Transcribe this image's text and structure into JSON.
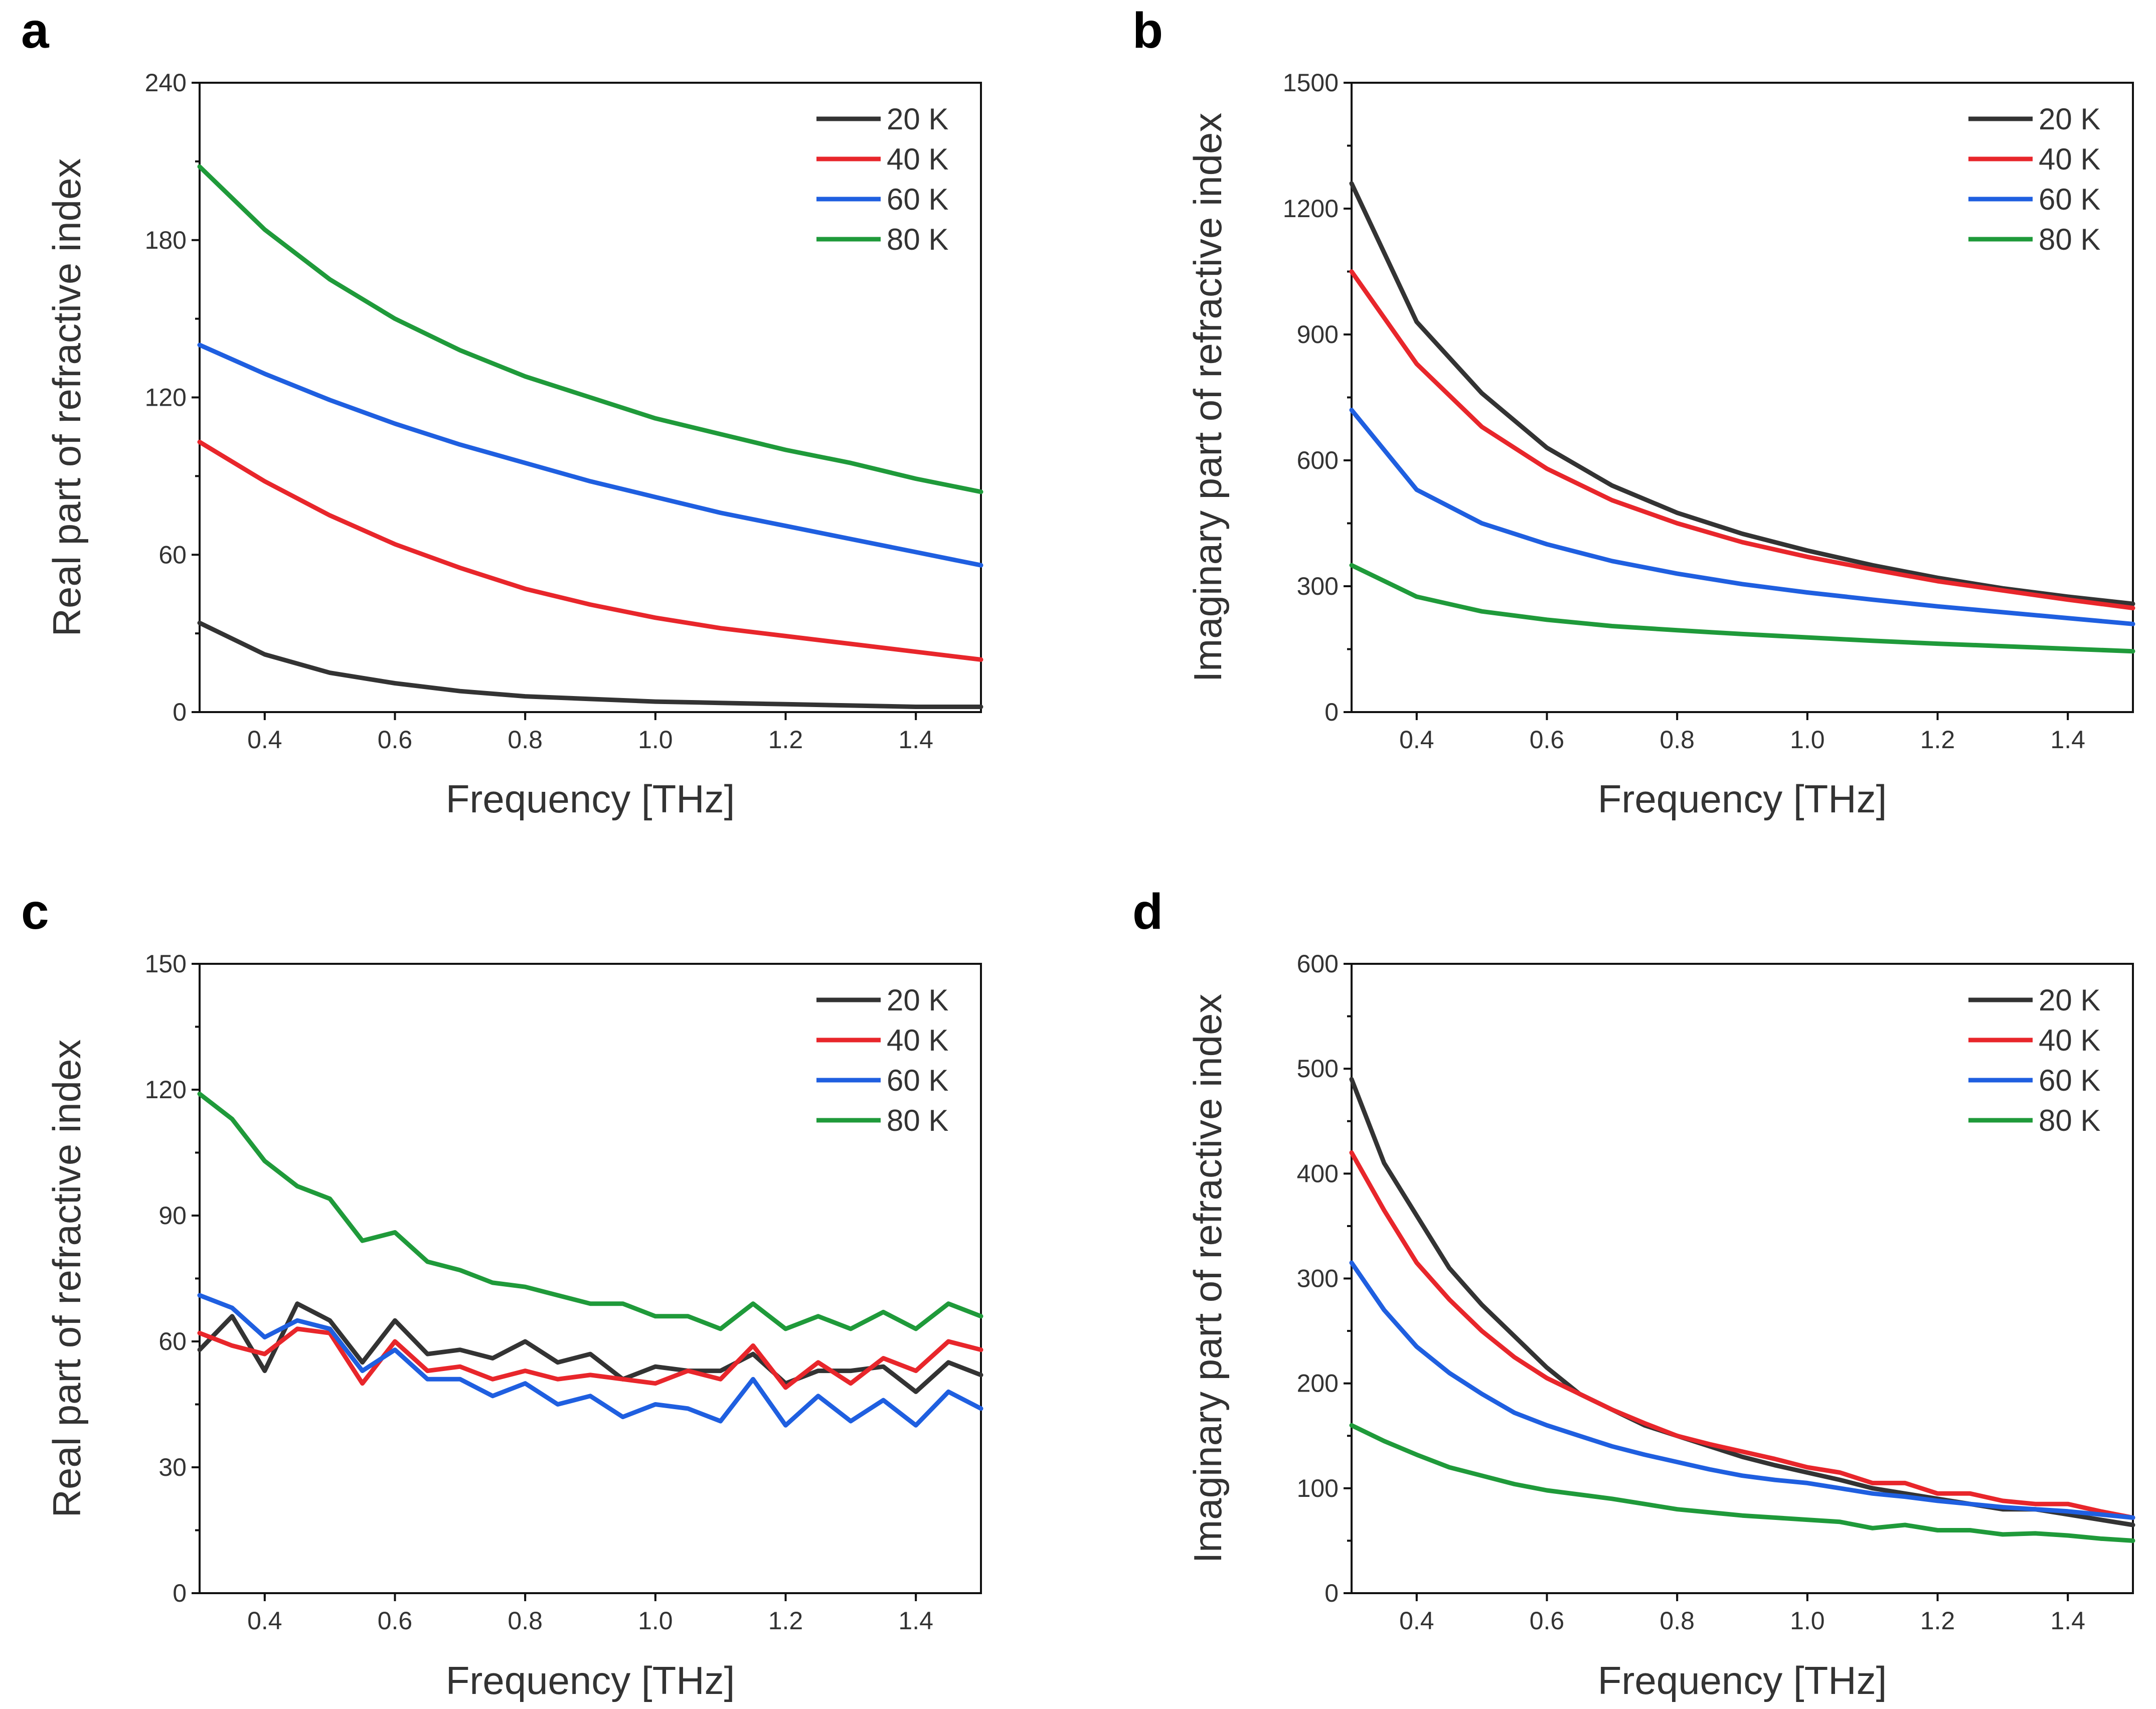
{
  "chart_data": [
    {
      "panel": "a",
      "type": "line",
      "xlabel": "Frequency [THz]",
      "ylabel": "Real part of refractive index",
      "xlim": [
        0.3,
        1.5
      ],
      "ylim": [
        0,
        240
      ],
      "xticks": [
        0.4,
        0.6,
        0.8,
        1.0,
        1.2,
        1.4
      ],
      "xtick_labels": [
        "0.4",
        "0.6",
        "0.8",
        "1.0",
        "1.2",
        "1.4"
      ],
      "yticks": [
        0,
        60,
        120,
        180,
        240
      ],
      "ytick_labels": [
        "0",
        "60",
        "120",
        "180",
        "240"
      ],
      "legend_position": "top-right",
      "x": [
        0.3,
        0.4,
        0.5,
        0.6,
        0.7,
        0.8,
        0.9,
        1.0,
        1.1,
        1.2,
        1.3,
        1.4,
        1.5
      ],
      "series": [
        {
          "name": "20 K",
          "color": "#333333",
          "values": [
            34,
            22,
            15,
            11,
            8,
            6,
            5,
            4,
            3.5,
            3,
            2.5,
            2,
            2
          ]
        },
        {
          "name": "40 K",
          "color": "#e8262b",
          "values": [
            103,
            88,
            75,
            64,
            55,
            47,
            41,
            36,
            32,
            29,
            26,
            23,
            20
          ]
        },
        {
          "name": "60 K",
          "color": "#1f5fe0",
          "values": [
            140,
            129,
            119,
            110,
            102,
            95,
            88,
            82,
            76,
            71,
            66,
            61,
            56
          ]
        },
        {
          "name": "80 K",
          "color": "#1f9a3a",
          "values": [
            208,
            184,
            165,
            150,
            138,
            128,
            120,
            112,
            106,
            100,
            95,
            89,
            84
          ]
        }
      ]
    },
    {
      "panel": "b",
      "type": "line",
      "xlabel": "Frequency [THz]",
      "ylabel": "Imaginary part of refractive index",
      "xlim": [
        0.3,
        1.5
      ],
      "ylim": [
        0,
        1500
      ],
      "xticks": [
        0.4,
        0.6,
        0.8,
        1.0,
        1.2,
        1.4
      ],
      "xtick_labels": [
        "0.4",
        "0.6",
        "0.8",
        "1.0",
        "1.2",
        "1.4"
      ],
      "yticks": [
        0,
        300,
        600,
        900,
        1200,
        1500
      ],
      "ytick_labels": [
        "0",
        "300",
        "600",
        "900",
        "1200",
        "1500"
      ],
      "legend_position": "top-right",
      "x": [
        0.3,
        0.4,
        0.5,
        0.6,
        0.7,
        0.8,
        0.9,
        1.0,
        1.1,
        1.2,
        1.3,
        1.4,
        1.5
      ],
      "series": [
        {
          "name": "20 K",
          "color": "#333333",
          "values": [
            1260,
            930,
            760,
            630,
            540,
            475,
            425,
            385,
            350,
            320,
            295,
            275,
            258
          ]
        },
        {
          "name": "40 K",
          "color": "#e8262b",
          "values": [
            1050,
            830,
            680,
            580,
            505,
            450,
            405,
            370,
            340,
            312,
            290,
            268,
            248
          ]
        },
        {
          "name": "60 K",
          "color": "#1f5fe0",
          "values": [
            720,
            530,
            450,
            400,
            360,
            330,
            305,
            285,
            268,
            252,
            238,
            224,
            210
          ]
        },
        {
          "name": "80 K",
          "color": "#1f9a3a",
          "values": [
            350,
            275,
            240,
            220,
            205,
            195,
            186,
            178,
            170,
            163,
            157,
            151,
            145
          ]
        }
      ]
    },
    {
      "panel": "c",
      "type": "line",
      "xlabel": "Frequency [THz]",
      "ylabel": "Real part of refractive index",
      "xlim": [
        0.3,
        1.5
      ],
      "ylim": [
        0,
        150
      ],
      "xticks": [
        0.4,
        0.6,
        0.8,
        1.0,
        1.2,
        1.4
      ],
      "xtick_labels": [
        "0.4",
        "0.6",
        "0.8",
        "1.0",
        "1.2",
        "1.4"
      ],
      "yticks": [
        0,
        30,
        60,
        90,
        120,
        150
      ],
      "ytick_labels": [
        "0",
        "30",
        "60",
        "90",
        "120",
        "150"
      ],
      "legend_position": "top-right",
      "x": [
        0.3,
        0.35,
        0.4,
        0.45,
        0.5,
        0.55,
        0.6,
        0.65,
        0.7,
        0.75,
        0.8,
        0.85,
        0.9,
        0.95,
        1.0,
        1.05,
        1.1,
        1.15,
        1.2,
        1.25,
        1.3,
        1.35,
        1.4,
        1.45,
        1.5
      ],
      "series": [
        {
          "name": "20 K",
          "color": "#333333",
          "values": [
            58,
            66,
            53,
            69,
            65,
            55,
            65,
            57,
            58,
            56,
            60,
            55,
            57,
            51,
            54,
            53,
            53,
            57,
            50,
            53,
            53,
            54,
            48,
            55,
            52
          ]
        },
        {
          "name": "40 K",
          "color": "#e8262b",
          "values": [
            62,
            59,
            57,
            63,
            62,
            50,
            60,
            53,
            54,
            51,
            53,
            51,
            52,
            51,
            50,
            53,
            51,
            59,
            49,
            55,
            50,
            56,
            53,
            60,
            58
          ]
        },
        {
          "name": "60 K",
          "color": "#1f5fe0",
          "values": [
            71,
            68,
            61,
            65,
            63,
            53,
            58,
            51,
            51,
            47,
            50,
            45,
            47,
            42,
            45,
            44,
            41,
            51,
            40,
            47,
            41,
            46,
            40,
            48,
            44
          ]
        },
        {
          "name": "80 K",
          "color": "#1f9a3a",
          "values": [
            119,
            113,
            103,
            97,
            94,
            84,
            86,
            79,
            77,
            74,
            73,
            71,
            69,
            69,
            66,
            66,
            63,
            69,
            63,
            66,
            63,
            67,
            63,
            69,
            66
          ]
        }
      ]
    },
    {
      "panel": "d",
      "type": "line",
      "xlabel": "Frequency [THz]",
      "ylabel": "Imaginary part of refractive index",
      "xlim": [
        0.3,
        1.5
      ],
      "ylim": [
        0,
        600
      ],
      "xticks": [
        0.4,
        0.6,
        0.8,
        1.0,
        1.2,
        1.4
      ],
      "xtick_labels": [
        "0.4",
        "0.6",
        "0.8",
        "1.0",
        "1.2",
        "1.4"
      ],
      "yticks": [
        0,
        100,
        200,
        300,
        400,
        500,
        600
      ],
      "ytick_labels": [
        "0",
        "100",
        "200",
        "300",
        "400",
        "500",
        "600"
      ],
      "legend_position": "top-right",
      "x": [
        0.3,
        0.35,
        0.4,
        0.45,
        0.5,
        0.55,
        0.6,
        0.65,
        0.7,
        0.75,
        0.8,
        0.85,
        0.9,
        0.95,
        1.0,
        1.05,
        1.1,
        1.15,
        1.2,
        1.25,
        1.3,
        1.35,
        1.4,
        1.45,
        1.5
      ],
      "series": [
        {
          "name": "20 K",
          "color": "#333333",
          "values": [
            490,
            410,
            360,
            310,
            275,
            245,
            215,
            190,
            175,
            160,
            150,
            140,
            130,
            122,
            115,
            108,
            100,
            95,
            90,
            85,
            80,
            80,
            75,
            70,
            65
          ]
        },
        {
          "name": "40 K",
          "color": "#e8262b",
          "values": [
            420,
            365,
            315,
            280,
            250,
            225,
            205,
            190,
            175,
            162,
            150,
            142,
            135,
            128,
            120,
            115,
            105,
            105,
            95,
            95,
            88,
            85,
            85,
            78,
            72
          ]
        },
        {
          "name": "60 K",
          "color": "#1f5fe0",
          "values": [
            315,
            270,
            235,
            210,
            190,
            172,
            160,
            150,
            140,
            132,
            125,
            118,
            112,
            108,
            105,
            100,
            95,
            92,
            88,
            85,
            82,
            80,
            78,
            75,
            72
          ]
        },
        {
          "name": "80 K",
          "color": "#1f9a3a",
          "values": [
            160,
            145,
            132,
            120,
            112,
            104,
            98,
            94,
            90,
            85,
            80,
            77,
            74,
            72,
            70,
            68,
            62,
            65,
            60,
            60,
            56,
            57,
            55,
            52,
            50
          ]
        }
      ]
    }
  ]
}
